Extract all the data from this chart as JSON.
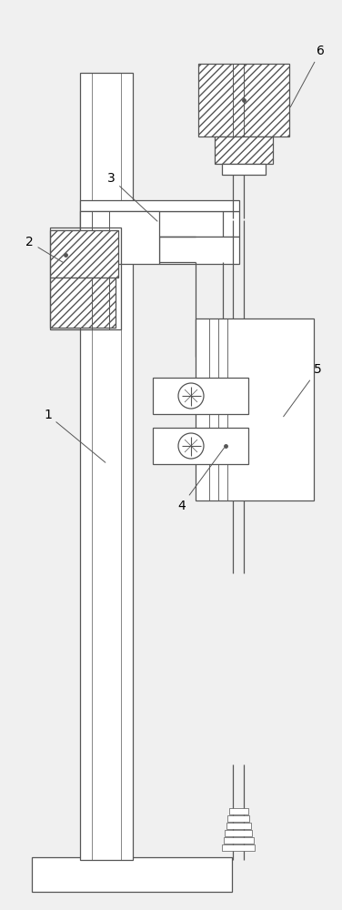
{
  "bg_color": "#f0f0f0",
  "line_color": "#555555",
  "lw": 0.9,
  "fig_w": 3.76,
  "fig_h": 10.0
}
